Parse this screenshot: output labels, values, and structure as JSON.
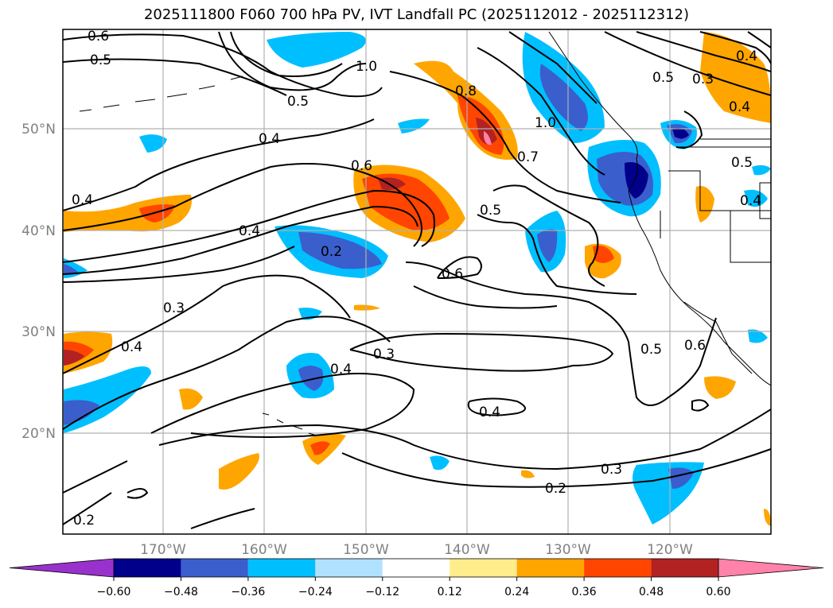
{
  "title": "2025111800 F060 700 hPa PV, IVT Landfall PC (2025112012 - 2025112312)",
  "lat_ticks": [
    "50°N",
    "40°N",
    "30°N",
    "20°N"
  ],
  "lon_ticks": [
    "170°W",
    "160°W",
    "150°W",
    "140°W",
    "130°W",
    "120°W"
  ],
  "contour_labels": [
    "0.6",
    "0.5",
    "1.0",
    "0.5",
    "0.4",
    "0.8",
    "1.0",
    "0.3",
    "0.4",
    "0.5",
    "0.6",
    "0.7",
    "0.5",
    "0.4",
    "0.4",
    "0.4",
    "0.2",
    "0.6",
    "0.3",
    "0.4",
    "0.3",
    "0.4",
    "0.5",
    "0.6",
    "0.4",
    "0.3",
    "0.2",
    "0.2",
    "0.4",
    "0.5"
  ],
  "colorbar": {
    "ticks": [
      "−0.60",
      "−0.48",
      "−0.36",
      "−0.24",
      "−0.12",
      "0.12",
      "0.24",
      "0.36",
      "0.48",
      "0.60"
    ],
    "colors": [
      "#9932cc",
      "#00008b",
      "#3a5fcd",
      "#00bfff",
      "#b0e2ff",
      "#ffffff",
      "#ffec8b",
      "#ffa500",
      "#ff4500",
      "#b22222",
      "#ff82ab"
    ],
    "extend": "both"
  }
}
